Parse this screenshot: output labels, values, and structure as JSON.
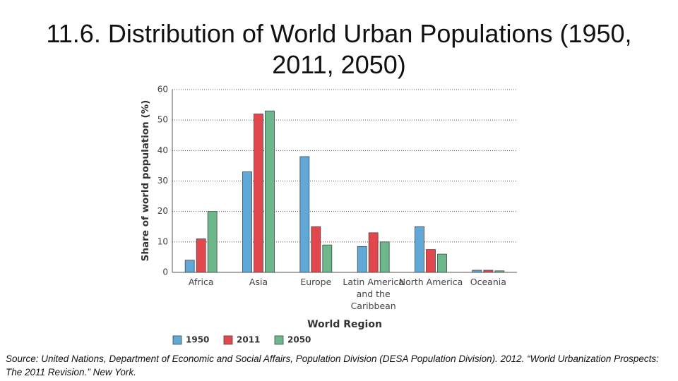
{
  "chart_data": {
    "type": "bar",
    "title": "11.6. Distribution of World Urban Populations (1950, 2011, 2050)",
    "y_label": "Share of world population (%)",
    "x_label": "World Region",
    "categories": [
      "Africa",
      "Asia",
      "Europe",
      "Latin America and the Caribbean",
      "North America",
      "Oceania"
    ],
    "series": [
      {
        "name": "1950",
        "color": "#5fa8d8",
        "values": [
          4,
          33,
          38,
          8.5,
          15,
          0.7
        ]
      },
      {
        "name": "2011",
        "color": "#e2474d",
        "values": [
          11,
          52,
          15,
          13,
          7.5,
          0.7
        ]
      },
      {
        "name": "2050",
        "color": "#6db88b",
        "values": [
          20,
          53,
          9,
          10,
          6,
          0.5
        ]
      }
    ],
    "ylim": [
      0,
      60
    ],
    "yticks": [
      0,
      10,
      20,
      30,
      40,
      50,
      60
    ],
    "grid": true,
    "legend": "bottom",
    "source": "Source: United Nations, Department of Economic and Social Affairs, Population Division (DESA Population Division). 2012. “World Urbanization Prospects: The 2011 Revision.” New York."
  }
}
